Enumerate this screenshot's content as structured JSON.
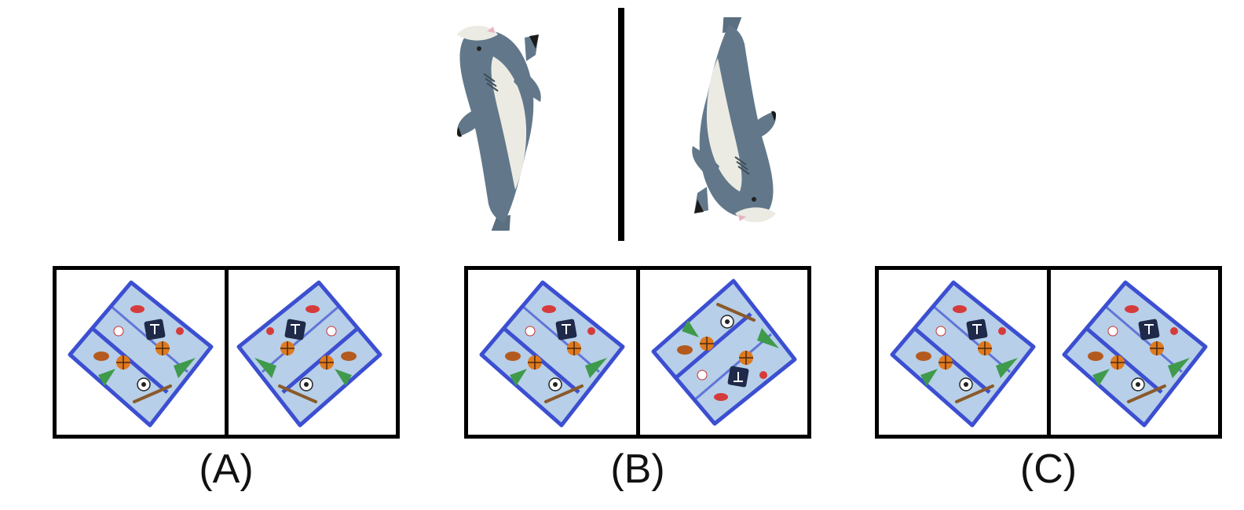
{
  "reference": {
    "left_object": "shark-plush",
    "right_object": "shark-plush"
  },
  "options": [
    {
      "label": "(A)",
      "left_image": "sports-pouch",
      "right_image": "sports-pouch"
    },
    {
      "label": "(B)",
      "left_image": "sports-pouch",
      "right_image": "sports-pouch"
    },
    {
      "label": "(C)",
      "left_image": "sports-pouch",
      "right_image": "sports-pouch"
    }
  ],
  "colors": {
    "shark_gray": "#62788a",
    "shark_belly": "#ecebe3",
    "shark_fin_tip": "#1a1a1a",
    "pouch_fabric": "#b7cfe8",
    "pouch_trim": "#3c4fd1",
    "frame": "#000000"
  }
}
